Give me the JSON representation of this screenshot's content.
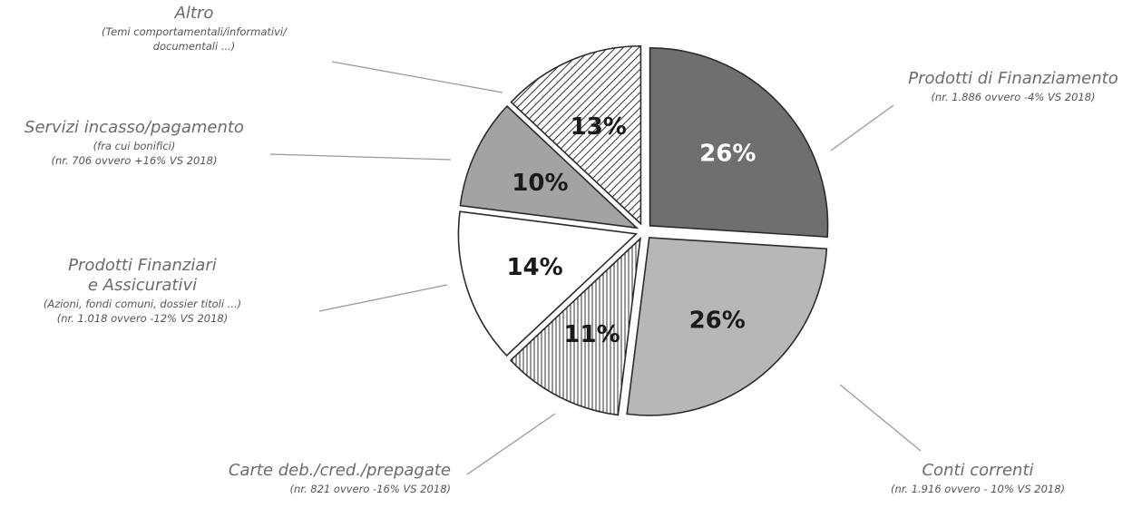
{
  "chart_data": {
    "type": "pie",
    "unit": "%",
    "slices": [
      {
        "key": "finanziamento",
        "value": 26,
        "label": "26%",
        "title": [
          "Prodotti di Finanziamento"
        ],
        "details": [
          "(nr. 1.886 ovvero -4% VS 2018)"
        ],
        "color": "#6f6f6f",
        "pattern": "solid",
        "label_color": "#ffffff"
      },
      {
        "key": "conti",
        "value": 26,
        "label": "26%",
        "title": [
          "Conti correnti"
        ],
        "details": [
          "(nr. 1.916 ovvero - 10% VS 2018)"
        ],
        "color": "#b7b7b7",
        "pattern": "solid",
        "label_color": "#1a1a1a"
      },
      {
        "key": "carte",
        "value": 11,
        "label": "11%",
        "title": [
          "Carte deb./cred./prepagate"
        ],
        "details": [
          "(nr. 821 ovvero -16% VS 2018)"
        ],
        "color": "#ffffff",
        "pattern": "vertical-lines",
        "label_color": "#1a1a1a"
      },
      {
        "key": "prodotti-fin",
        "value": 14,
        "label": "14%",
        "title": [
          "Prodotti Finanziari",
          "e Assicurativi"
        ],
        "details": [
          "(Azioni, fondi comuni, dossier titoli ...)",
          "(nr. 1.018 ovvero -12% VS 2018)"
        ],
        "color": "#ffffff",
        "pattern": "solid",
        "label_color": "#1a1a1a"
      },
      {
        "key": "servizi",
        "value": 10,
        "label": "10%",
        "title": [
          "Servizi incasso/pagamento"
        ],
        "details": [
          "(fra cui bonifici)",
          "(nr. 706 ovvero +16% VS 2018)"
        ],
        "color": "#a3a3a3",
        "pattern": "solid",
        "label_color": "#1a1a1a"
      },
      {
        "key": "altro",
        "value": 13,
        "label": "13%",
        "title": [
          "Altro"
        ],
        "details": [
          "(Temi comportamentali/informativi/",
          "documentali ...)"
        ],
        "color": "#ffffff",
        "pattern": "diagonal-lines",
        "label_color": "#1a1a1a"
      }
    ],
    "legend": "none"
  }
}
